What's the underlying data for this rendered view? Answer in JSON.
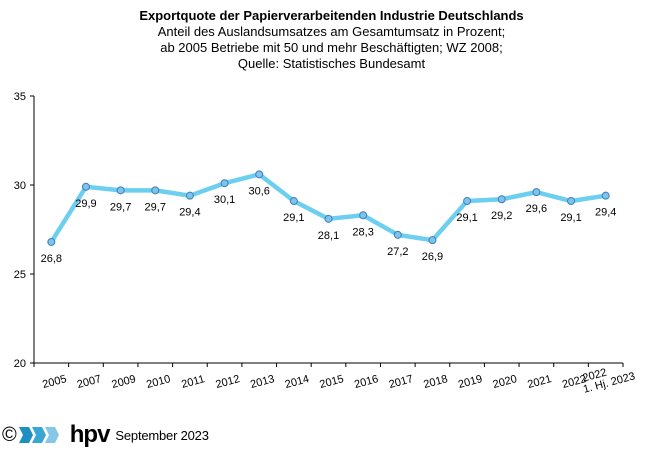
{
  "chart_data": {
    "type": "line",
    "title": "Exportquote der Papierverarbeitenden Industrie Deutschlands",
    "subtitle": [
      "Anteil des Auslandsumsatzes am Gesamtumsatz in Prozent;",
      "ab 2005 Betriebe mit 50 und mehr Beschäftigten; WZ 2008;",
      "Quelle: Statistisches Bundesamt"
    ],
    "categories": [
      "2005",
      "2007",
      "2009",
      "2010",
      "2011",
      "2012",
      "2013",
      "2014",
      "2015",
      "2016",
      "2017",
      "2018",
      "2019",
      "2020",
      "2021",
      "2022",
      "1. Hj. 2023"
    ],
    "series": [
      {
        "name": "Exportquote",
        "values": [
          26.8,
          29.9,
          29.7,
          29.7,
          29.4,
          30.1,
          30.6,
          29.1,
          28.1,
          28.3,
          27.2,
          26.9,
          29.1,
          29.2,
          29.6,
          29.1,
          29.4
        ]
      }
    ],
    "data_labels": [
      "26,8",
      "29,9",
      "29,7",
      "29,7",
      "29,4",
      "30,1",
      "30,6",
      "29,1",
      "28,1",
      "28,3",
      "27,2",
      "26,9",
      "29,1",
      "29,2",
      "29,6",
      "29,1",
      "29,4"
    ],
    "yticks": [
      "20",
      "25",
      "30",
      "35"
    ],
    "ylim": [
      20,
      35
    ],
    "xlabel": "",
    "ylabel": "",
    "grid": false,
    "legend": "none",
    "colors": {
      "line": "#6ccff0",
      "marker_fill": "#7ec3ea",
      "marker_stroke": "#3a7fbf"
    }
  },
  "footer": {
    "copyright": "©",
    "brand": "hpv",
    "date": "September 2023"
  }
}
